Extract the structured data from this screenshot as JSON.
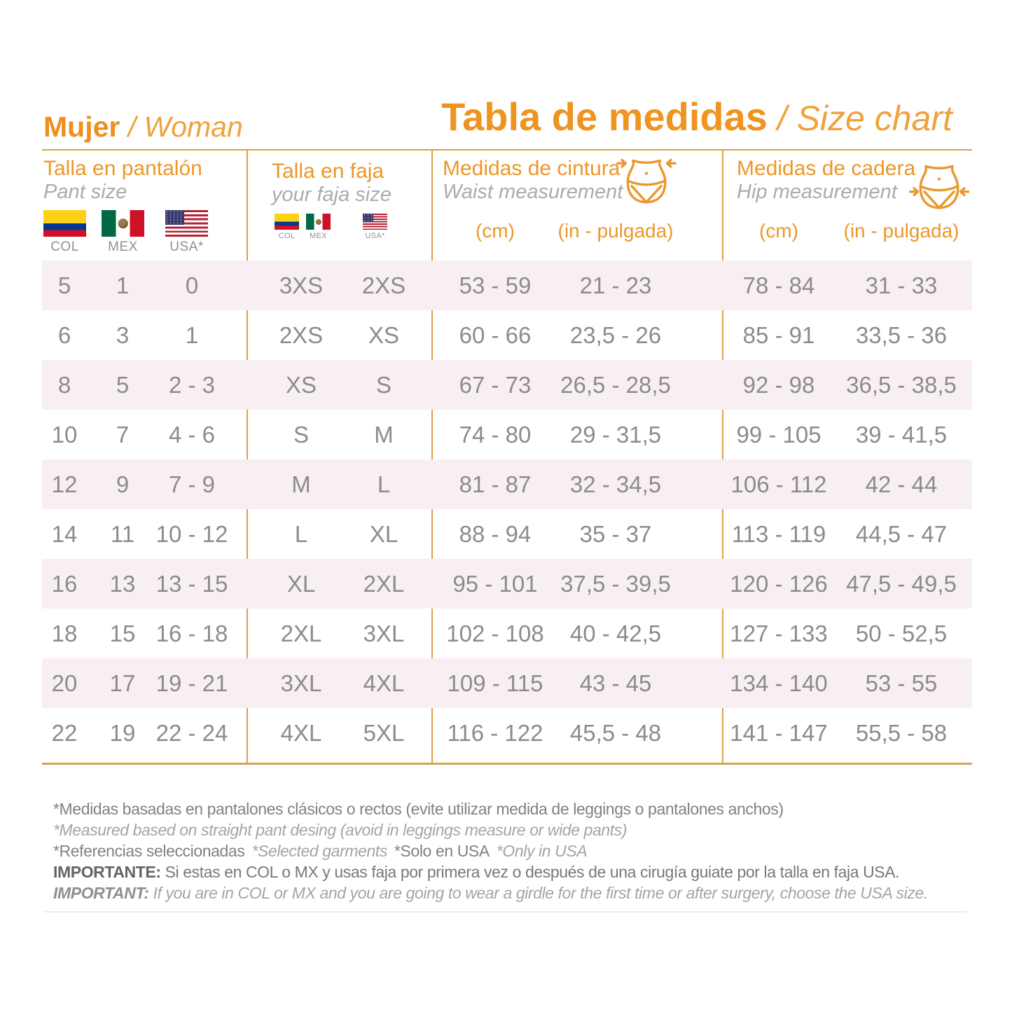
{
  "brand": {
    "bold": "Mujer",
    "italic": " / Woman"
  },
  "title": {
    "bold": "Tabla de medidas",
    "italic": " / Size chart"
  },
  "columns": {
    "pant": {
      "title": "Talla en pantalón",
      "subtitle": "Pant size",
      "flags": [
        "COL",
        "MEX",
        "USA*"
      ]
    },
    "faja": {
      "title": "Talla en faja",
      "subtitle": "your faja size",
      "flags": [
        "COL",
        "MEX",
        "USA*"
      ]
    },
    "waist": {
      "title": "Medidas de cintura",
      "subtitle": "Waist measurement",
      "units": [
        "(cm)",
        "(in - pulgada)"
      ]
    },
    "hip": {
      "title": "Medidas de cadera",
      "subtitle": "Hip measurement",
      "units": [
        "(cm)",
        "(in - pulgada)"
      ]
    }
  },
  "rows": [
    {
      "pant_col": "5",
      "pant_mex": "1",
      "pant_usa": "0",
      "faja_colmex": "3XS",
      "faja_usa": "2XS",
      "waist_cm": "53 - 59",
      "waist_in": "21 - 23",
      "hip_cm": "78 - 84",
      "hip_in": "31 - 33"
    },
    {
      "pant_col": "6",
      "pant_mex": "3",
      "pant_usa": "1",
      "faja_colmex": "2XS",
      "faja_usa": "XS",
      "waist_cm": "60 - 66",
      "waist_in": "23,5 - 26",
      "hip_cm": "85 - 91",
      "hip_in": "33,5 - 36"
    },
    {
      "pant_col": "8",
      "pant_mex": "5",
      "pant_usa": "2 - 3",
      "faja_colmex": "XS",
      "faja_usa": "S",
      "waist_cm": "67 - 73",
      "waist_in": "26,5 - 28,5",
      "hip_cm": "92 - 98",
      "hip_in": "36,5 - 38,5"
    },
    {
      "pant_col": "10",
      "pant_mex": "7",
      "pant_usa": "4 - 6",
      "faja_colmex": "S",
      "faja_usa": "M",
      "waist_cm": "74 - 80",
      "waist_in": "29 - 31,5",
      "hip_cm": "99 - 105",
      "hip_in": "39 - 41,5"
    },
    {
      "pant_col": "12",
      "pant_mex": "9",
      "pant_usa": "7 - 9",
      "faja_colmex": "M",
      "faja_usa": "L",
      "waist_cm": "81 - 87",
      "waist_in": "32 - 34,5",
      "hip_cm": "106 - 112",
      "hip_in": "42 - 44"
    },
    {
      "pant_col": "14",
      "pant_mex": "11",
      "pant_usa": "10 - 12",
      "faja_colmex": "L",
      "faja_usa": "XL",
      "waist_cm": "88 - 94",
      "waist_in": "35 - 37",
      "hip_cm": "113 - 119",
      "hip_in": "44,5 - 47"
    },
    {
      "pant_col": "16",
      "pant_mex": "13",
      "pant_usa": "13 - 15",
      "faja_colmex": "XL",
      "faja_usa": "2XL",
      "waist_cm": "95 - 101",
      "waist_in": "37,5 - 39,5",
      "hip_cm": "120 - 126",
      "hip_in": "47,5 - 49,5"
    },
    {
      "pant_col": "18",
      "pant_mex": "15",
      "pant_usa": "16 - 18",
      "faja_colmex": "2XL",
      "faja_usa": "3XL",
      "waist_cm": "102 - 108",
      "waist_in": "40 - 42,5",
      "hip_cm": "127 - 133",
      "hip_in": "50 - 52,5"
    },
    {
      "pant_col": "20",
      "pant_mex": "17",
      "pant_usa": "19 - 21",
      "faja_colmex": "3XL",
      "faja_usa": "4XL",
      "waist_cm": "109 - 115",
      "waist_in": "43 - 45",
      "hip_cm": "134 - 140",
      "hip_in": "53 - 55"
    },
    {
      "pant_col": "22",
      "pant_mex": "19",
      "pant_usa": "22 - 24",
      "faja_colmex": "4XL",
      "faja_usa": "5XL",
      "waist_cm": "116 - 122",
      "waist_in": "45,5 - 48",
      "hip_cm": "141 - 147",
      "hip_in": "55,5 - 58"
    }
  ],
  "notes": {
    "line1_es": "*Medidas basadas en pantalones clásicos o rectos (evite utilizar medida de leggings o pantalones anchos)",
    "line1_en": "*Measured based on straight pant desing (avoid in leggings measure or wide pants)",
    "refs_es": "*Referencias seleccionadas",
    "refs_en": "*Selected garments",
    "usa_es": "*Solo en USA",
    "usa_en": "*Only in USA",
    "important_es_label": "IMPORTANTE:",
    "important_es_text": " Si estas en COL o MX y usas faja por primera vez o después de una cirugía guiate por la talla en faja USA.",
    "important_en_label": "IMPORTANT:",
    "important_en_text": " If you are in COL or MX and you are going to wear a girdle for the first time or after surgery, choose the USA size."
  },
  "colors": {
    "accent_orange": "#ED9727",
    "rule_gold": "#DCA04A",
    "stripe_pink": "#F8EFF3",
    "value_gray": "#8B8B90"
  }
}
